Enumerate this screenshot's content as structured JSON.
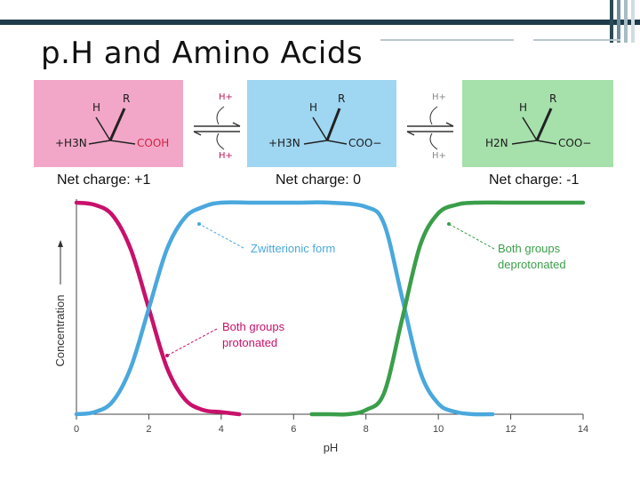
{
  "slide": {
    "title": "p.H and Amino Acids",
    "net_charges": [
      "Net charge: +1",
      "Net charge: 0",
      "Net charge: -1"
    ]
  },
  "structures": [
    {
      "color": "#f2a7c8",
      "top_labels": [
        "H",
        "R"
      ],
      "left": "+H3N",
      "right": "COOH"
    },
    {
      "color": "#9fd6f2",
      "top_labels": [
        "H",
        "R"
      ],
      "left": "+H3N",
      "right": "COO−"
    },
    {
      "color": "#a6e0ab",
      "top_labels": [
        "H",
        "R"
      ],
      "left": "H2N",
      "right": "COO−"
    }
  ],
  "equilibria": [
    {
      "top": "H+",
      "bottom": "H+"
    },
    {
      "top": "H+",
      "bottom": "H+"
    }
  ],
  "chart_data": {
    "type": "line",
    "xlabel": "pH",
    "ylabel": "Concentration",
    "xlim": [
      0,
      14
    ],
    "ylim": [
      0,
      1
    ],
    "x_ticks": [
      0,
      2,
      4,
      6,
      8,
      10,
      12,
      14
    ],
    "series": [
      {
        "name": "Both groups protonated",
        "color": "#c8116b",
        "x": [
          0,
          0.5,
          1.0,
          1.5,
          2.0,
          2.5,
          3.0,
          3.5,
          4.0,
          4.5
        ],
        "y": [
          1.0,
          0.99,
          0.94,
          0.78,
          0.5,
          0.22,
          0.07,
          0.02,
          0.01,
          0.0
        ]
      },
      {
        "name": "Zwitterionic form",
        "color": "#4aa8dd",
        "x": [
          0,
          0.5,
          1.0,
          1.5,
          2.0,
          2.5,
          3.0,
          3.5,
          4.0,
          5.0,
          6.0,
          7.0,
          8.0,
          8.5,
          9.0,
          9.5,
          10.0,
          10.5,
          11.0,
          11.5
        ],
        "y": [
          0.0,
          0.01,
          0.06,
          0.22,
          0.5,
          0.78,
          0.93,
          0.98,
          1.0,
          1.0,
          1.0,
          1.0,
          0.98,
          0.9,
          0.55,
          0.2,
          0.05,
          0.01,
          0.0,
          0.0
        ]
      },
      {
        "name": "Both groups deprotonated",
        "color": "#3a9e4a",
        "x": [
          6.5,
          7.0,
          7.5,
          8.0,
          8.5,
          9.0,
          9.5,
          10.0,
          10.5,
          11.0,
          12.0,
          13.0,
          14.0
        ],
        "y": [
          0.0,
          0.0,
          0.0,
          0.02,
          0.1,
          0.45,
          0.8,
          0.95,
          0.99,
          1.0,
          1.0,
          1.0,
          1.0
        ]
      }
    ],
    "annotations": [
      {
        "text": "Zwitterionic form",
        "series": 1,
        "lines": [
          "Zwitterionic form"
        ]
      },
      {
        "text": "Both groups protonated",
        "series": 0,
        "lines": [
          "Both groups",
          "protonated"
        ]
      },
      {
        "text": "Both groups deprotonated",
        "series": 2,
        "lines": [
          "Both groups",
          "deprotonated"
        ]
      }
    ]
  }
}
